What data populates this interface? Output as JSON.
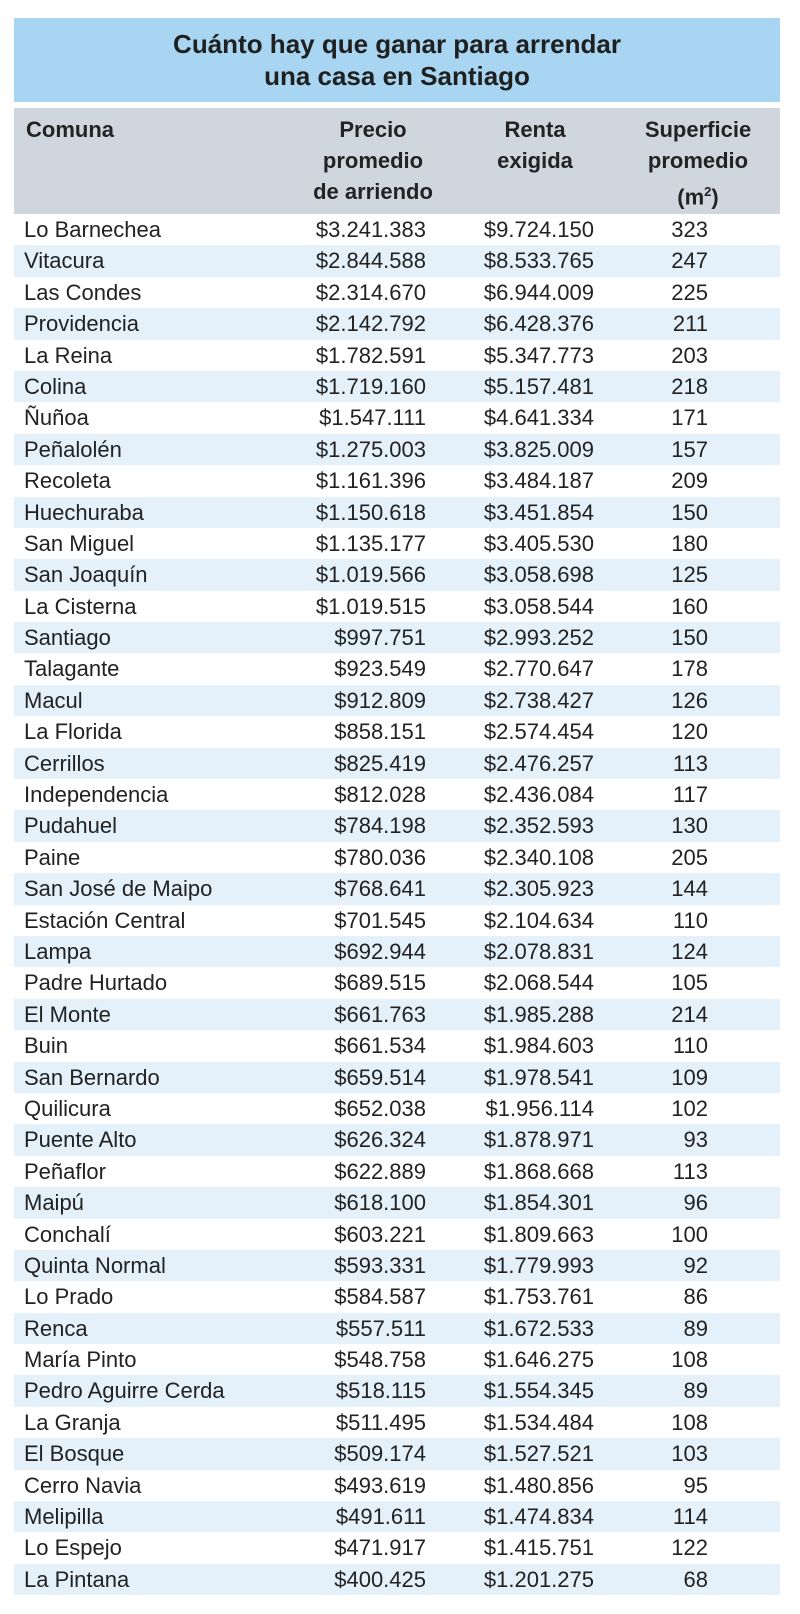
{
  "title": {
    "line1": "Cuánto hay que ganar para arrendar",
    "line2": "una casa en Santiago"
  },
  "colors": {
    "title_background": "#a8d6f2",
    "header_background": "#cfd6dd",
    "alt_row_background": "#e4f1fa"
  },
  "headers": {
    "comuna": "Comuna",
    "precio": [
      "Precio",
      "promedio",
      "de arriendo"
    ],
    "renta": [
      "Renta",
      "exigida"
    ],
    "superficie": [
      "Superficie",
      "promedio",
      "(m",
      "2",
      ")"
    ]
  },
  "rows": [
    {
      "comuna": "Lo Barnechea",
      "precio": "$3.241.383",
      "renta": "$9.724.150",
      "superficie": "323"
    },
    {
      "comuna": "Vitacura",
      "precio": "$2.844.588",
      "renta": "$8.533.765",
      "superficie": "247"
    },
    {
      "comuna": "Las Condes",
      "precio": "$2.314.670",
      "renta": "$6.944.009",
      "superficie": "225"
    },
    {
      "comuna": "Providencia",
      "precio": "$2.142.792",
      "renta": "$6.428.376",
      "superficie": "211"
    },
    {
      "comuna": "La Reina",
      "precio": "$1.782.591",
      "renta": "$5.347.773",
      "superficie": "203"
    },
    {
      "comuna": "Colina",
      "precio": "$1.719.160",
      "renta": "$5.157.481",
      "superficie": "218"
    },
    {
      "comuna": "Ñuñoa",
      "precio": "$1.547.111",
      "renta": "$4.641.334",
      "superficie": "171"
    },
    {
      "comuna": "Peñalolén",
      "precio": "$1.275.003",
      "renta": "$3.825.009",
      "superficie": "157"
    },
    {
      "comuna": "Recoleta",
      "precio": "$1.161.396",
      "renta": "$3.484.187",
      "superficie": "209"
    },
    {
      "comuna": "Huechuraba",
      "precio": "$1.150.618",
      "renta": "$3.451.854",
      "superficie": "150"
    },
    {
      "comuna": "San Miguel",
      "precio": "$1.135.177",
      "renta": "$3.405.530",
      "superficie": "180"
    },
    {
      "comuna": "San Joaquín",
      "precio": "$1.019.566",
      "renta": "$3.058.698",
      "superficie": "125"
    },
    {
      "comuna": "La Cisterna",
      "precio": "$1.019.515",
      "renta": "$3.058.544",
      "superficie": "160"
    },
    {
      "comuna": "Santiago",
      "precio": "$997.751",
      "renta": "$2.993.252",
      "superficie": "150"
    },
    {
      "comuna": "Talagante",
      "precio": "$923.549",
      "renta": "$2.770.647",
      "superficie": "178"
    },
    {
      "comuna": "Macul",
      "precio": "$912.809",
      "renta": "$2.738.427",
      "superficie": "126"
    },
    {
      "comuna": "La Florida",
      "precio": "$858.151",
      "renta": "$2.574.454",
      "superficie": "120"
    },
    {
      "comuna": "Cerrillos",
      "precio": "$825.419",
      "renta": "$2.476.257",
      "superficie": "113"
    },
    {
      "comuna": "Independencia",
      "precio": "$812.028",
      "renta": "$2.436.084",
      "superficie": "117"
    },
    {
      "comuna": "Pudahuel",
      "precio": "$784.198",
      "renta": "$2.352.593",
      "superficie": "130"
    },
    {
      "comuna": "Paine",
      "precio": "$780.036",
      "renta": "$2.340.108",
      "superficie": "205"
    },
    {
      "comuna": "San José de Maipo",
      "precio": "$768.641",
      "renta": "$2.305.923",
      "superficie": "144"
    },
    {
      "comuna": "Estación Central",
      "precio": "$701.545",
      "renta": "$2.104.634",
      "superficie": "110"
    },
    {
      "comuna": "Lampa",
      "precio": "$692.944",
      "renta": "$2.078.831",
      "superficie": "124"
    },
    {
      "comuna": "Padre Hurtado",
      "precio": "$689.515",
      "renta": "$2.068.544",
      "superficie": "105"
    },
    {
      "comuna": "El Monte",
      "precio": "$661.763",
      "renta": "$1.985.288",
      "superficie": "214"
    },
    {
      "comuna": "Buin",
      "precio": "$661.534",
      "renta": "$1.984.603",
      "superficie": "110"
    },
    {
      "comuna": "San Bernardo",
      "precio": "$659.514",
      "renta": "$1.978.541",
      "superficie": "109"
    },
    {
      "comuna": "Quilicura",
      "precio": "$652.038",
      "renta": "$1.956.114",
      "superficie": "102"
    },
    {
      "comuna": "Puente Alto",
      "precio": "$626.324",
      "renta": "$1.878.971",
      "superficie": "93"
    },
    {
      "comuna": "Peñaflor",
      "precio": "$622.889",
      "renta": "$1.868.668",
      "superficie": "113"
    },
    {
      "comuna": "Maipú",
      "precio": "$618.100",
      "renta": "$1.854.301",
      "superficie": "96"
    },
    {
      "comuna": "Conchalí",
      "precio": "$603.221",
      "renta": "$1.809.663",
      "superficie": "100"
    },
    {
      "comuna": "Quinta Normal",
      "precio": "$593.331",
      "renta": "$1.779.993",
      "superficie": "92"
    },
    {
      "comuna": "Lo Prado",
      "precio": "$584.587",
      "renta": "$1.753.761",
      "superficie": "86"
    },
    {
      "comuna": "Renca",
      "precio": "$557.511",
      "renta": "$1.672.533",
      "superficie": "89"
    },
    {
      "comuna": "María Pinto",
      "precio": "$548.758",
      "renta": "$1.646.275",
      "superficie": "108"
    },
    {
      "comuna": "Pedro Aguirre Cerda",
      "precio": "$518.115",
      "renta": "$1.554.345",
      "superficie": "89"
    },
    {
      "comuna": "La Granja",
      "precio": "$511.495",
      "renta": "$1.534.484",
      "superficie": "108"
    },
    {
      "comuna": "El Bosque",
      "precio": "$509.174",
      "renta": "$1.527.521",
      "superficie": "103"
    },
    {
      "comuna": "Cerro Navia",
      "precio": "$493.619",
      "renta": "$1.480.856",
      "superficie": "95"
    },
    {
      "comuna": "Melipilla",
      "precio": "$491.611",
      "renta": "$1.474.834",
      "superficie": "114"
    },
    {
      "comuna": "Lo Espejo",
      "precio": "$471.917",
      "renta": "$1.415.751",
      "superficie": "122"
    },
    {
      "comuna": "La Pintana",
      "precio": "$400.425",
      "renta": "$1.201.275",
      "superficie": "68"
    }
  ]
}
